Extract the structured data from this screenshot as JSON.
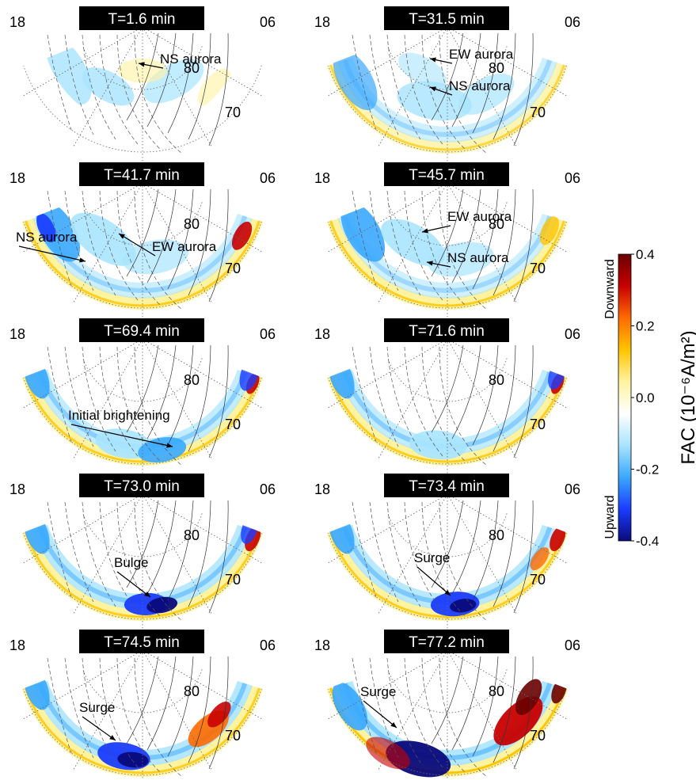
{
  "chart_data": {
    "type": "heatmap",
    "quantity": "FAC",
    "colorbar": {
      "label": "FAC (10⁻⁶A/m²)",
      "ticks": [
        "0.4",
        "0.2",
        "0.0",
        "-0.2",
        "-0.4"
      ],
      "tick_values": [
        0.4,
        0.2,
        0.0,
        -0.2,
        -0.4
      ],
      "range": [
        -0.4,
        0.4
      ],
      "upper_label": "Downward",
      "lower_label": "Upward",
      "colors": [
        "#0a0a7a",
        "#1a3cff",
        "#3aa8ff",
        "#a8e4ff",
        "#ffffff",
        "#fff3a0",
        "#ffc400",
        "#ff6a00",
        "#c80000",
        "#6a0000"
      ]
    },
    "map_labels": {
      "mlt_left": "18",
      "mlt_right": "06",
      "lat_inner": "80",
      "lat_outer": "70"
    },
    "panels": [
      {
        "title": "T=1.6 min",
        "annotations": [
          "NS aurora"
        ]
      },
      {
        "title": "T=31.5 min",
        "annotations": [
          "EW aurora",
          "NS aurora"
        ]
      },
      {
        "title": "T=41.7 min",
        "annotations": [
          "NS aurora",
          "EW aurora"
        ]
      },
      {
        "title": "T=45.7 min",
        "annotations": [
          "EW aurora",
          "NS aurora"
        ]
      },
      {
        "title": "T=69.4 min",
        "annotations": [
          "Initial brightening"
        ]
      },
      {
        "title": "T=71.6 min",
        "annotations": []
      },
      {
        "title": "T=73.0 min",
        "annotations": [
          "Bulge"
        ]
      },
      {
        "title": "T=73.4 min",
        "annotations": [
          "Surge"
        ]
      },
      {
        "title": "T=74.5 min",
        "annotations": [
          "Surge"
        ]
      },
      {
        "title": "T=77.2 min",
        "annotations": [
          "Surge"
        ]
      }
    ]
  }
}
